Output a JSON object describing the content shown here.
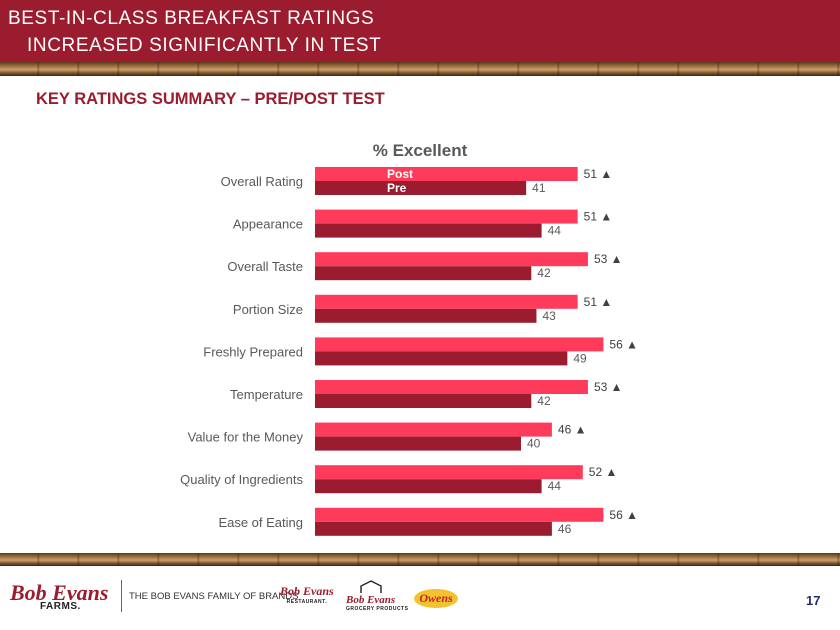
{
  "header": {
    "line1": "BEST-IN-CLASS BREAKFAST RATINGS",
    "line2": "INCREASED SIGNIFICANTLY  IN TEST"
  },
  "subtitle": "KEY RATINGS SUMMARY – PRE/POST TEST",
  "colors": {
    "brand": "#9b1c2e",
    "post": "#ff3b5c",
    "pre": "#9b1c2e",
    "marker": "#404040"
  },
  "chart_data": {
    "type": "bar",
    "orientation": "horizontal",
    "title": "% Excellent",
    "categories": [
      "Overall Rating",
      "Appearance",
      "Overall Taste",
      "Portion Size",
      "Freshly Prepared",
      "Temperature",
      "Value for the Money",
      "Quality of Ingredients",
      "Ease of Eating"
    ],
    "series": [
      {
        "name": "Post",
        "values": [
          51,
          51,
          53,
          51,
          56,
          53,
          46,
          52,
          56
        ],
        "labels": [
          "51 ▲",
          "51 ▲",
          "53 ▲",
          "51 ▲",
          "56 ▲",
          "53 ▲",
          "46 ▲",
          "52 ▲",
          "56 ▲"
        ]
      },
      {
        "name": "Pre",
        "values": [
          41,
          44,
          42,
          43,
          49,
          42,
          40,
          44,
          46
        ],
        "labels": [
          "41",
          "44",
          "42",
          "43",
          "49",
          "42",
          "40",
          "44",
          "46"
        ]
      }
    ],
    "significance_marker": "▲",
    "legend": "inside-first-bar",
    "xlim": [
      0,
      100
    ],
    "grid": false
  },
  "footer": {
    "logo_main": "Bob Evans",
    "logo_sub": "FARMS.",
    "family_text": "THE BOB EVANS FAMILY OF BRANDS",
    "brand1": "Bob Evans",
    "brand1_sub": "RESTAURANT.",
    "brand2": "Bob Evans",
    "brand2_sub": "GROCERY PRODUCTS",
    "brand3": "Owens",
    "page_number": "17"
  }
}
